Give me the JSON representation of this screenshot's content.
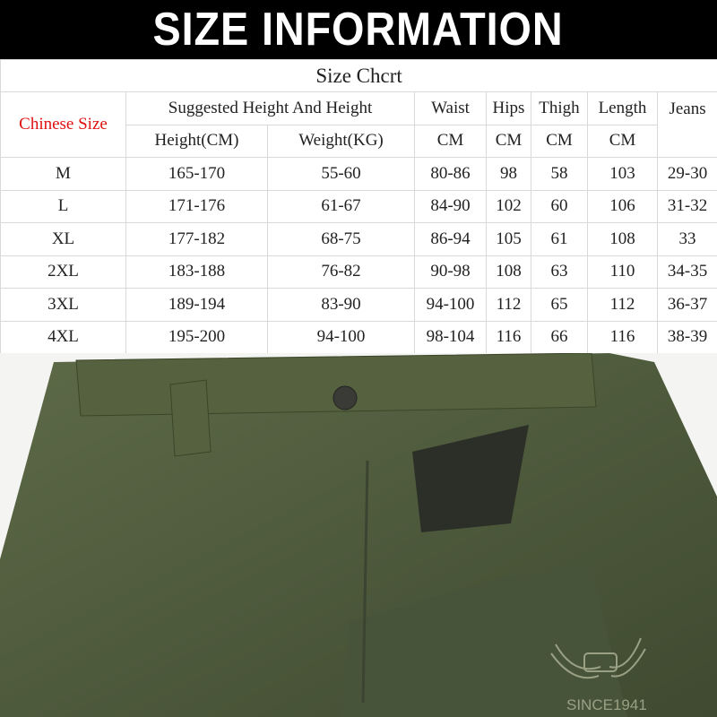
{
  "banner": {
    "title": "SIZE INFORMATION"
  },
  "table": {
    "title": "Size Chcrt",
    "corner": "Chinese Size",
    "group_header": "Suggested Height And Height",
    "columns": [
      "Waist",
      "Hips",
      "Thigh",
      "Length",
      "Jeans"
    ],
    "units": [
      "Height(CM)",
      "Weight(KG)",
      "CM",
      "CM",
      "CM",
      "CM",
      ""
    ],
    "rows": [
      [
        "M",
        "165-170",
        "55-60",
        "80-86",
        "98",
        "58",
        "103",
        "29-30"
      ],
      [
        "L",
        "171-176",
        "61-67",
        "84-90",
        "102",
        "60",
        "106",
        "31-32"
      ],
      [
        "XL",
        "177-182",
        "68-75",
        "86-94",
        "105",
        "61",
        "108",
        "33"
      ],
      [
        "2XL",
        "183-188",
        "76-82",
        "90-98",
        "108",
        "63",
        "110",
        "34-35"
      ],
      [
        "3XL",
        "189-194",
        "83-90",
        "94-100",
        "112",
        "65",
        "112",
        "36-37"
      ],
      [
        "4XL",
        "195-200",
        "94-100",
        "98-104",
        "116",
        "66",
        "116",
        "38-39"
      ]
    ]
  },
  "photo": {
    "embroidery": "SINCE1941",
    "fabric_color": "#4e5a3c",
    "accent_color": "#e01010"
  }
}
